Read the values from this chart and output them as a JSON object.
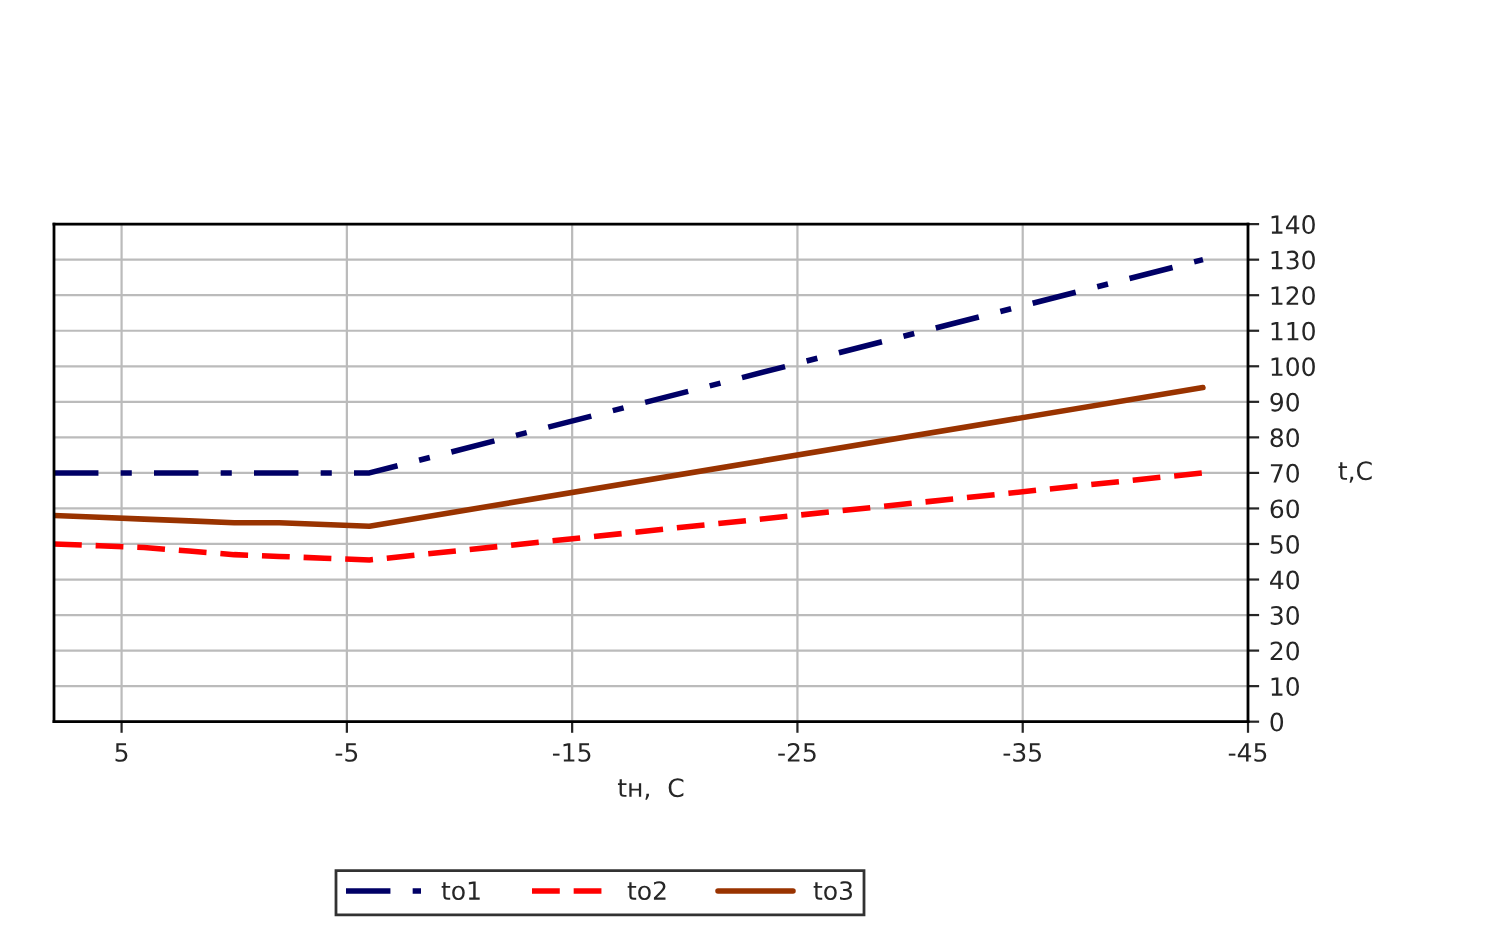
{
  "chart_data": {
    "type": "line",
    "xlabel": "tн,  C",
    "ylabel": "t,C",
    "x": [
      8,
      6,
      4,
      2,
      0,
      -2,
      -4,
      -6,
      -43
    ],
    "series": [
      {
        "name": "to1",
        "color": "#000066",
        "line_style": "dashdot",
        "values": [
          70,
          70,
          70,
          70,
          70,
          70,
          70,
          70,
          130
        ]
      },
      {
        "name": "to2",
        "color": "#ff0000",
        "line_style": "dashed",
        "values": [
          50,
          49.5,
          49,
          48,
          47,
          46.5,
          46,
          45.5,
          70
        ]
      },
      {
        "name": "to3",
        "color": "#993300",
        "line_style": "solid",
        "values": [
          58,
          57.5,
          57,
          56.5,
          56,
          56,
          55.5,
          55,
          94
        ]
      }
    ],
    "xlim": [
      8,
      -45
    ],
    "xticks": [
      5,
      -5,
      -15,
      -25,
      -35,
      -45
    ],
    "ylim": [
      0,
      140
    ],
    "yticks": [
      0,
      10,
      20,
      30,
      40,
      50,
      60,
      70,
      80,
      90,
      100,
      110,
      120,
      130,
      140
    ],
    "grid": true,
    "legend": "bottom",
    "marker": "none"
  }
}
